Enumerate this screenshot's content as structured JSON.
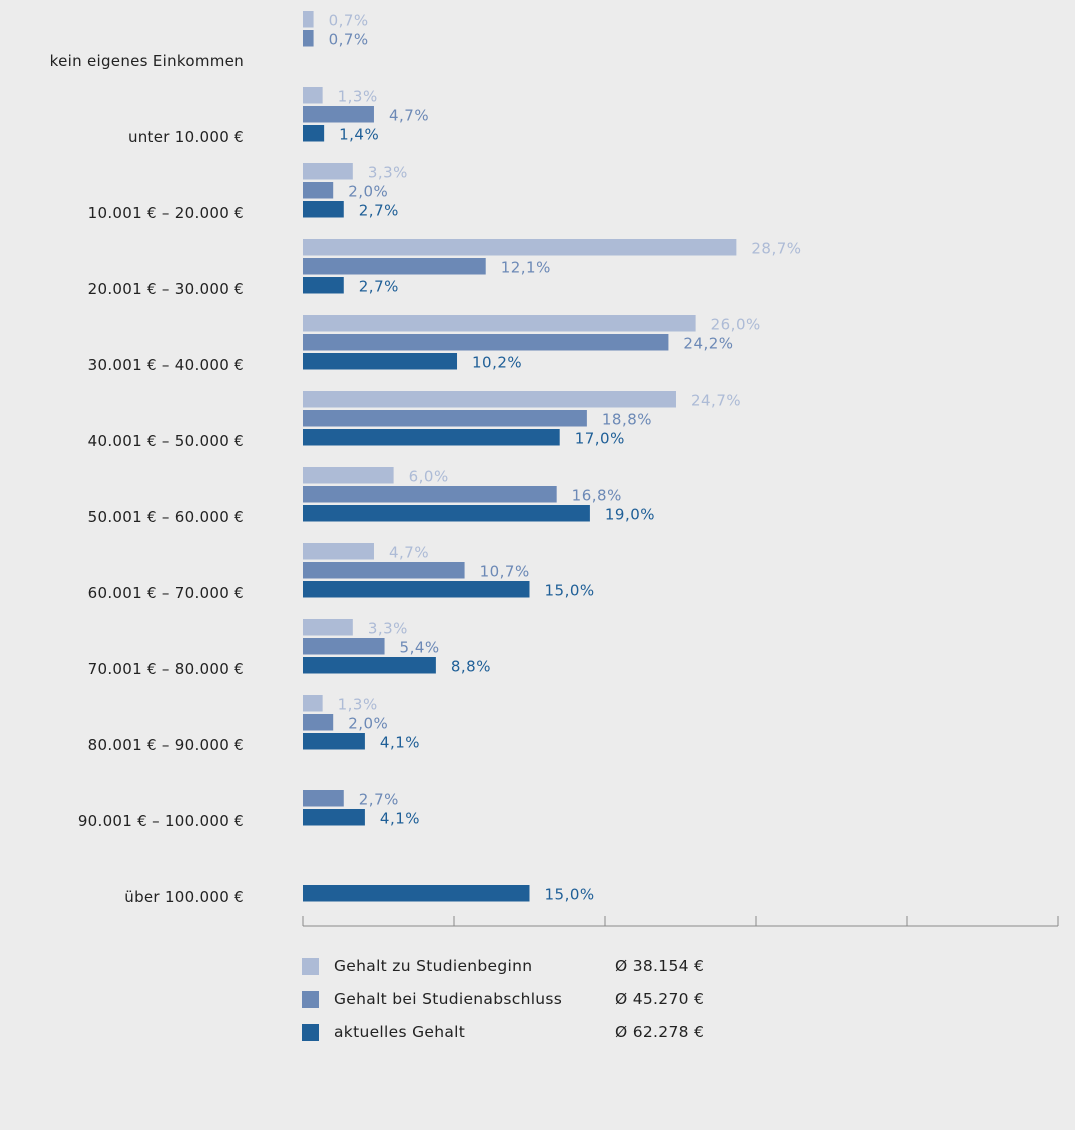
{
  "chart_data": {
    "type": "bar",
    "orientation": "horizontal",
    "categories": [
      "kein eigenes Einkommen",
      "unter 10.000 €",
      "10.001 € – 20.000 €",
      "20.001 € – 30.000 €",
      "30.001 € – 40.000 €",
      "40.001 € – 50.000 €",
      "50.001 € – 60.000 €",
      "60.001 € – 70.000 €",
      "70.001 € – 80.000 €",
      "80.001 € – 90.000 €",
      "90.001 € – 100.000 €",
      "über 100.000 €"
    ],
    "series": [
      {
        "name": "Gehalt zu Studienbeginn",
        "average": "Ø 38.154 €",
        "color": "#adbbd6",
        "values": [
          0.7,
          1.3,
          3.3,
          28.7,
          26.0,
          24.7,
          6.0,
          4.7,
          3.3,
          1.3,
          null,
          null
        ],
        "labels": [
          "0,7%",
          "1,3%",
          "3,3%",
          "28,7%",
          "26,0%",
          "24,7%",
          "6,0%",
          "4,7%",
          "3,3%",
          "1,3%",
          null,
          null
        ]
      },
      {
        "name": "Gehalt bei Studienabschluss",
        "average": "Ø 45.270 €",
        "color": "#6c89b6",
        "values": [
          0.7,
          4.7,
          2.0,
          12.1,
          24.2,
          18.8,
          16.8,
          10.7,
          5.4,
          2.0,
          2.7,
          null
        ],
        "labels": [
          "0,7%",
          "4,7%",
          "2,0%",
          "12,1%",
          "24,2%",
          "18,8%",
          "16,8%",
          "10,7%",
          "5,4%",
          "2,0%",
          "2,7%",
          null
        ]
      },
      {
        "name": "aktuelles Gehalt",
        "average": "Ø 62.278 €",
        "color": "#1f5f97",
        "values": [
          null,
          1.4,
          2.7,
          2.7,
          10.2,
          17.0,
          19.0,
          15.0,
          8.8,
          4.1,
          4.1,
          15.0
        ],
        "labels": [
          null,
          "1,4%",
          "2,7%",
          "2,7%",
          "10,2%",
          "17,0%",
          "19,0%",
          "15,0%",
          "8,8%",
          "4,1%",
          "4,1%",
          "15,0%"
        ]
      }
    ],
    "xlim": [
      0,
      50
    ],
    "xticks": [
      "0",
      "10",
      "20",
      "30",
      "40",
      "50"
    ],
    "grid": false,
    "legend_position": "bottom"
  }
}
